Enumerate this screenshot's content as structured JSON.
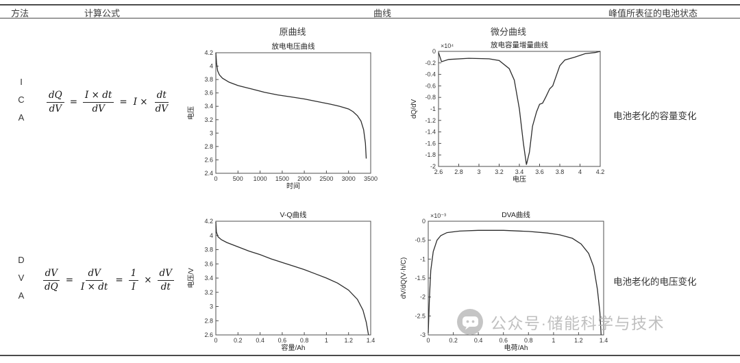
{
  "header": {
    "col_method": "方法",
    "col_formula": "计算公式",
    "col_curves": "曲线",
    "col_state": "峰值所表征的电池状态",
    "sub_original": "原曲线",
    "sub_differential": "微分曲线"
  },
  "rows": [
    {
      "method": "ICA",
      "letters": [
        "I",
        "C",
        "A"
      ],
      "formula": {
        "f1n": "dQ",
        "f1d": "dV",
        "eq1": "=",
        "f2n": "I × dt",
        "f2d": "dV",
        "eq2": "=",
        "pre": "I ×",
        "f3n": "dt",
        "f3d": "dV"
      },
      "state": "电池老化的容量变化"
    },
    {
      "method": "DVA",
      "letters": [
        "D",
        "V",
        "A"
      ],
      "formula": {
        "f1n": "dV",
        "f1d": "dQ",
        "eq1": "=",
        "f2n": "dV",
        "f2d": "I × dt",
        "eq2": "=",
        "f3n": "1",
        "f3d": "I",
        "times": "×",
        "f4n": "dV",
        "f4d": "dt"
      },
      "state": "电池老化的电压变化"
    }
  ],
  "watermark": {
    "text": "公众号·储能科学与技术"
  },
  "chart_data": [
    {
      "type": "line",
      "title": "放电电压曲线",
      "xlabel": "时间",
      "ylabel": "电压",
      "xlim": [
        0,
        3500
      ],
      "ylim": [
        2.4,
        4.2
      ],
      "xticks": [
        "0",
        "500",
        "1000",
        "1500",
        "2000",
        "2500",
        "3000",
        "3500"
      ],
      "yticks": [
        "2.4",
        "2.6",
        "2.8",
        "3",
        "3.2",
        "3.4",
        "3.6",
        "3.8",
        "4",
        "4.2"
      ],
      "scale_label": "",
      "points": [
        [
          0,
          4.2
        ],
        [
          15,
          4.05
        ],
        [
          40,
          3.93
        ],
        [
          80,
          3.87
        ],
        [
          150,
          3.82
        ],
        [
          300,
          3.76
        ],
        [
          500,
          3.71
        ],
        [
          800,
          3.66
        ],
        [
          1100,
          3.61
        ],
        [
          1400,
          3.57
        ],
        [
          1700,
          3.54
        ],
        [
          2000,
          3.51
        ],
        [
          2300,
          3.47
        ],
        [
          2600,
          3.43
        ],
        [
          2800,
          3.4
        ],
        [
          3000,
          3.36
        ],
        [
          3100,
          3.32
        ],
        [
          3200,
          3.26
        ],
        [
          3280,
          3.18
        ],
        [
          3340,
          3.05
        ],
        [
          3380,
          2.85
        ],
        [
          3400,
          2.62
        ]
      ]
    },
    {
      "type": "line",
      "title": "放电容量增量曲线",
      "xlabel": "电压",
      "ylabel": "dQ/dV",
      "xlim": [
        2.6,
        4.2
      ],
      "ylim": [
        -2,
        0
      ],
      "xticks": [
        "2.6",
        "2.8",
        "3",
        "3.2",
        "3.4",
        "3.6",
        "3.8",
        "4",
        "4.2"
      ],
      "yticks": [
        "0",
        "-0.2",
        "-0.4",
        "-0.6",
        "-0.8",
        "-1",
        "-1.2",
        "-1.4",
        "-1.6",
        "-1.8",
        "-2"
      ],
      "scale_label": "×10⁴",
      "points": [
        [
          2.6,
          -0.02
        ],
        [
          2.63,
          -0.18
        ],
        [
          2.7,
          -0.14
        ],
        [
          2.9,
          -0.12
        ],
        [
          3.1,
          -0.13
        ],
        [
          3.2,
          -0.16
        ],
        [
          3.3,
          -0.3
        ],
        [
          3.35,
          -0.5
        ],
        [
          3.4,
          -1.0
        ],
        [
          3.44,
          -1.6
        ],
        [
          3.47,
          -1.97
        ],
        [
          3.5,
          -1.75
        ],
        [
          3.53,
          -1.3
        ],
        [
          3.57,
          -1.05
        ],
        [
          3.6,
          -0.92
        ],
        [
          3.63,
          -0.9
        ],
        [
          3.66,
          -0.8
        ],
        [
          3.7,
          -0.65
        ],
        [
          3.73,
          -0.6
        ],
        [
          3.76,
          -0.45
        ],
        [
          3.8,
          -0.25
        ],
        [
          3.85,
          -0.15
        ],
        [
          3.95,
          -0.1
        ],
        [
          4.05,
          -0.04
        ],
        [
          4.15,
          -0.02
        ],
        [
          4.2,
          0
        ]
      ]
    },
    {
      "type": "line",
      "title": "V-Q曲线",
      "xlabel": "容量/Ah",
      "ylabel": "电压/V",
      "xlim": [
        0,
        1.4
      ],
      "ylim": [
        2.6,
        4.2
      ],
      "xticks": [
        "0",
        "0.2",
        "0.4",
        "0.6",
        "0.8",
        "1",
        "1.2",
        "1.4"
      ],
      "yticks": [
        "2.6",
        "2.8",
        "3",
        "3.2",
        "3.4",
        "3.6",
        "3.8",
        "4",
        "4.2"
      ],
      "scale_label": "",
      "points": [
        [
          0,
          4.19
        ],
        [
          0.005,
          4.05
        ],
        [
          0.02,
          3.98
        ],
        [
          0.05,
          3.94
        ],
        [
          0.1,
          3.9
        ],
        [
          0.2,
          3.84
        ],
        [
          0.3,
          3.78
        ],
        [
          0.4,
          3.73
        ],
        [
          0.5,
          3.67
        ],
        [
          0.6,
          3.62
        ],
        [
          0.7,
          3.57
        ],
        [
          0.8,
          3.52
        ],
        [
          0.9,
          3.46
        ],
        [
          1.0,
          3.4
        ],
        [
          1.1,
          3.33
        ],
        [
          1.2,
          3.23
        ],
        [
          1.28,
          3.1
        ],
        [
          1.33,
          2.95
        ],
        [
          1.36,
          2.78
        ],
        [
          1.38,
          2.6
        ]
      ]
    },
    {
      "type": "line",
      "title": "DVA曲线",
      "xlabel": "电荷/Ah",
      "ylabel": "dV/dQ(V·h/C)",
      "xlim": [
        0,
        1.4
      ],
      "ylim": [
        -3,
        0
      ],
      "xticks": [
        "0",
        "0.2",
        "0.4",
        "0.6",
        "0.8",
        "1",
        "1.2",
        "1.4"
      ],
      "yticks": [
        "0",
        "-0.5",
        "-1",
        "-1.5",
        "-2",
        "-2.5",
        "-3"
      ],
      "scale_label": "×10⁻³",
      "points": [
        [
          0,
          -2.95
        ],
        [
          0.01,
          -2.0
        ],
        [
          0.02,
          -1.3
        ],
        [
          0.04,
          -0.8
        ],
        [
          0.07,
          -0.5
        ],
        [
          0.1,
          -0.38
        ],
        [
          0.15,
          -0.3
        ],
        [
          0.25,
          -0.26
        ],
        [
          0.4,
          -0.24
        ],
        [
          0.6,
          -0.24
        ],
        [
          0.8,
          -0.27
        ],
        [
          0.95,
          -0.31
        ],
        [
          1.05,
          -0.36
        ],
        [
          1.15,
          -0.45
        ],
        [
          1.22,
          -0.6
        ],
        [
          1.28,
          -0.85
        ],
        [
          1.32,
          -1.2
        ],
        [
          1.35,
          -1.8
        ],
        [
          1.37,
          -2.4
        ],
        [
          1.38,
          -3.0
        ]
      ]
    }
  ]
}
